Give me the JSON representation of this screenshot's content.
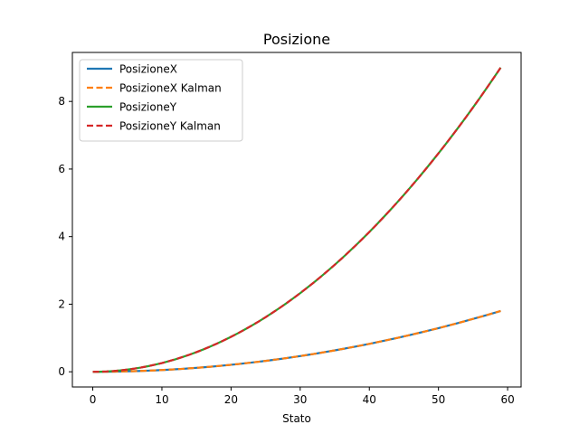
{
  "chart_data": {
    "type": "line",
    "title": "Posizione",
    "xlabel": "Stato",
    "ylabel": "",
    "xlim": [
      -2.95,
      61.95
    ],
    "ylim": [
      -0.45,
      9.45
    ],
    "xticks": [
      0,
      10,
      20,
      30,
      40,
      50,
      60
    ],
    "yticks": [
      0,
      2,
      4,
      6,
      8
    ],
    "grid": false,
    "legend_position": "top-left",
    "x": {
      "start": 0,
      "end": 59,
      "step": 1
    },
    "series": [
      {
        "name": "PosizioneX",
        "color": "#1f77b4",
        "style": "solid",
        "formula": "0.000517 * x^2",
        "endpoints": [
          [
            0,
            0
          ],
          [
            59,
            1.8
          ]
        ]
      },
      {
        "name": "PosizioneX Kalman",
        "color": "#ff7f0e",
        "style": "dashed",
        "formula": "0.000517 * x^2",
        "endpoints": [
          [
            0,
            0
          ],
          [
            59,
            1.8
          ]
        ]
      },
      {
        "name": "PosizioneY",
        "color": "#2ca02c",
        "style": "solid",
        "formula": "0.002586 * x^2",
        "endpoints": [
          [
            0,
            0
          ],
          [
            59,
            9.0
          ]
        ]
      },
      {
        "name": "PosizioneY Kalman",
        "color": "#d62728",
        "style": "dashed",
        "formula": "0.002586 * x^2",
        "endpoints": [
          [
            0,
            0
          ],
          [
            59,
            9.0
          ]
        ]
      }
    ]
  }
}
